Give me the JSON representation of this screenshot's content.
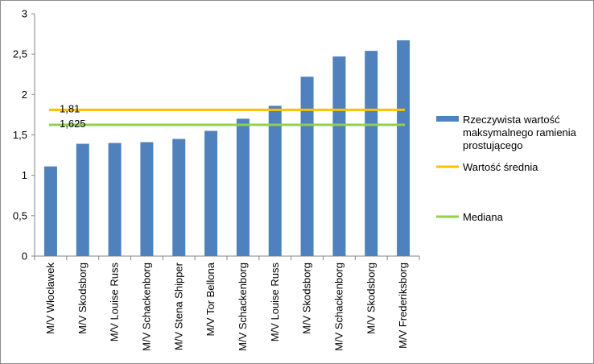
{
  "chart_data": {
    "type": "bar",
    "title": "",
    "xlabel": "",
    "ylabel": "",
    "ylim": [
      0,
      3
    ],
    "yticks": [
      0,
      0.5,
      1,
      1.5,
      2,
      2.5,
      3
    ],
    "ytick_labels": [
      "0",
      "0,5",
      "1",
      "1,5",
      "2",
      "2,5",
      "3"
    ],
    "grid": false,
    "legend_position": "right",
    "categories": [
      "M/V Włocławek",
      "M/V Skodsborg",
      "M/V Louise Russ",
      "M/V Schackenborg",
      "M/V Stena Shipper",
      "M/V Tor Bellona",
      "M/V Schackenborg",
      "M/V Louise Russ",
      "M/V Skodsborg",
      "M/V Schackenborg",
      "M/V Skodsborg",
      "M/V Frederiksborg"
    ],
    "series": [
      {
        "name": "Rzeczywista wartość maksymalnego ramienia prostującego",
        "kind": "bar",
        "color": "#4f81bd",
        "values": [
          1.11,
          1.39,
          1.4,
          1.41,
          1.45,
          1.55,
          1.7,
          1.86,
          2.22,
          2.47,
          2.54,
          2.67
        ]
      },
      {
        "name": "Wartość średnia",
        "kind": "line",
        "color": "#ffc000",
        "value": 1.81,
        "label": "1,81"
      },
      {
        "name": "Mediana",
        "kind": "line",
        "color": "#92d050",
        "value": 1.625,
        "label": "1,625"
      }
    ],
    "legend": [
      {
        "lines": [
          "Rzeczywista wartość",
          "maksymalnego ramienia",
          "prostującego"
        ],
        "symbol": "bar",
        "color": "#4f81bd"
      },
      {
        "lines": [
          "Wartość średnia"
        ],
        "symbol": "line",
        "color": "#ffc000"
      },
      {
        "lines": [
          "Mediana"
        ],
        "symbol": "line",
        "color": "#92d050"
      }
    ]
  }
}
